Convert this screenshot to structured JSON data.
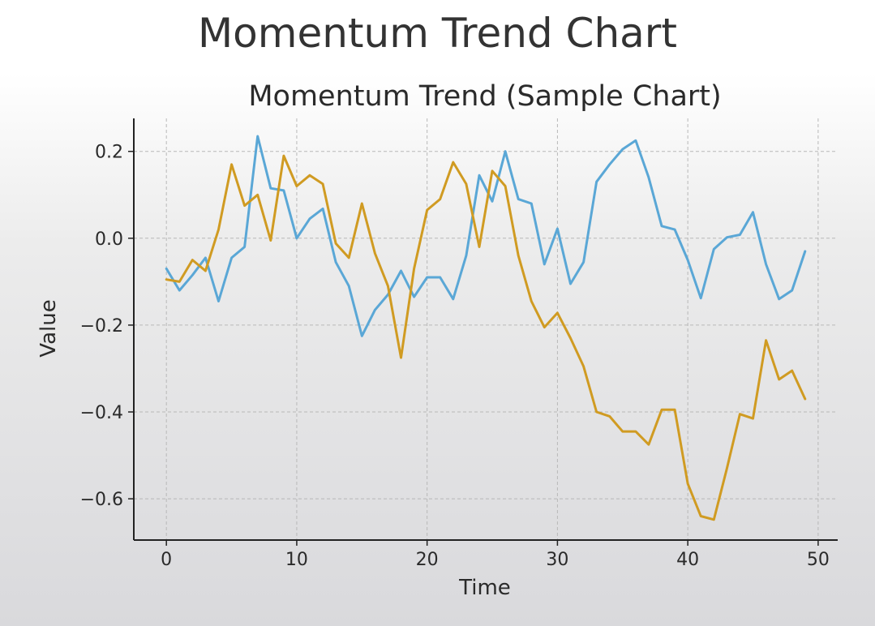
{
  "page": {
    "title": "Momentum Trend Chart"
  },
  "chart_data": {
    "type": "line",
    "title": "Momentum Trend (Sample Chart)",
    "xlabel": "Time",
    "ylabel": "Value",
    "xlim": [
      -2.5,
      51.5
    ],
    "ylim": [
      -0.695,
      0.276
    ],
    "xticks": [
      0,
      10,
      20,
      30,
      40,
      50
    ],
    "xtick_labels": [
      "0",
      "10",
      "20",
      "30",
      "40",
      "50"
    ],
    "yticks": [
      0.2,
      0.0,
      -0.2,
      -0.4,
      -0.6
    ],
    "ytick_labels": [
      "0.2",
      "0.0",
      "−0.2",
      "−0.4",
      "−0.6"
    ],
    "grid": true,
    "legend": "none",
    "x": [
      0,
      1,
      2,
      3,
      4,
      5,
      6,
      7,
      8,
      9,
      10,
      11,
      12,
      13,
      14,
      15,
      16,
      17,
      18,
      19,
      20,
      21,
      22,
      23,
      24,
      25,
      26,
      27,
      28,
      29,
      30,
      31,
      32,
      33,
      34,
      35,
      36,
      37,
      38,
      39,
      40,
      41,
      42,
      43,
      44,
      45,
      46,
      47,
      48,
      49
    ],
    "series": [
      {
        "color": "#5aa7d6",
        "values": [
          -0.07,
          -0.12,
          -0.085,
          -0.045,
          -0.145,
          -0.045,
          -0.02,
          0.235,
          0.115,
          0.11,
          0.0,
          0.045,
          0.068,
          -0.055,
          -0.11,
          -0.225,
          -0.165,
          -0.13,
          -0.075,
          -0.135,
          -0.09,
          -0.09,
          -0.14,
          -0.04,
          0.145,
          0.085,
          0.2,
          0.09,
          0.08,
          -0.06,
          0.022,
          -0.105,
          -0.055,
          0.13,
          0.17,
          0.205,
          0.225,
          0.14,
          0.028,
          0.02,
          -0.05,
          -0.138,
          -0.025,
          0.002,
          0.008,
          0.06,
          -0.06,
          -0.14,
          -0.12,
          -0.03
        ]
      },
      {
        "color": "#d09b22",
        "values": [
          -0.095,
          -0.1,
          -0.05,
          -0.075,
          0.02,
          0.17,
          0.075,
          0.1,
          -0.005,
          0.19,
          0.12,
          0.145,
          0.125,
          -0.012,
          -0.045,
          0.08,
          -0.035,
          -0.11,
          -0.275,
          -0.07,
          0.065,
          0.09,
          0.175,
          0.125,
          -0.02,
          0.155,
          0.12,
          -0.04,
          -0.145,
          -0.205,
          -0.172,
          -0.23,
          -0.295,
          -0.4,
          -0.41,
          -0.445,
          -0.445,
          -0.475,
          -0.395,
          -0.395,
          -0.565,
          -0.64,
          -0.648,
          -0.53,
          -0.405,
          -0.415,
          -0.235,
          -0.325,
          -0.305,
          -0.37
        ]
      }
    ]
  }
}
